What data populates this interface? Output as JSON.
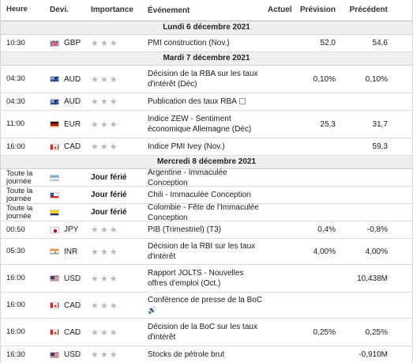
{
  "headers": {
    "time": "Heure",
    "currency": "Devi.",
    "importance": "Importance",
    "event": "Événement",
    "actual": "Actuel",
    "forecast": "Prévision",
    "previous": "Précédent"
  },
  "days": [
    {
      "label": "Lundi 6 décembre 2021",
      "events": [
        {
          "time": "10:30",
          "flag": "gb",
          "cur": "GBP",
          "imp": "★★★",
          "holiday": "",
          "event": [
            "PMI construction (Nov.)"
          ],
          "actual": "",
          "forecast": "52,0",
          "previous": "54,6",
          "icon": ""
        }
      ]
    },
    {
      "label": "Mardi 7 décembre 2021",
      "events": [
        {
          "time": "04:30",
          "flag": "au",
          "cur": "AUD",
          "imp": "★★★",
          "holiday": "",
          "event": [
            "Décision de la RBA sur les taux",
            "d'intérêt (Déc)"
          ],
          "actual": "",
          "forecast": "0,10%",
          "previous": "0,10%",
          "icon": ""
        },
        {
          "time": "04:30",
          "flag": "au",
          "cur": "AUD",
          "imp": "★★★",
          "holiday": "",
          "event": [
            "Publication des taux RBA"
          ],
          "actual": "",
          "forecast": "",
          "previous": "",
          "icon": "doc"
        },
        {
          "time": "11:00",
          "flag": "de",
          "cur": "EUR",
          "imp": "★★★",
          "holiday": "",
          "event": [
            "Indice ZEW - Sentiment",
            "économique Allemagne (Déc)"
          ],
          "actual": "",
          "forecast": "25,3",
          "previous": "31,7",
          "icon": ""
        },
        {
          "time": "16:00",
          "flag": "ca",
          "cur": "CAD",
          "imp": "★★★",
          "holiday": "",
          "event": [
            "Indice PMI Ivey (Nov.)"
          ],
          "actual": "",
          "forecast": "",
          "previous": "59,3",
          "icon": ""
        }
      ]
    },
    {
      "label": "Mercredi 8 décembre 2021",
      "events": [
        {
          "time": "Toute la journée",
          "flag": "ar",
          "cur": "",
          "imp": "",
          "holiday": "Jour férié",
          "event": [
            "Argentine - Immaculée Conception"
          ],
          "actual": "",
          "forecast": "",
          "previous": "",
          "icon": ""
        },
        {
          "time": "Toute la journée",
          "flag": "cl",
          "cur": "",
          "imp": "",
          "holiday": "Jour férié",
          "event": [
            "Chili - Immaculée Conception"
          ],
          "actual": "",
          "forecast": "",
          "previous": "",
          "icon": ""
        },
        {
          "time": "Toute la journée",
          "flag": "co",
          "cur": "",
          "imp": "",
          "holiday": "Jour férié",
          "event": [
            "Colombie - Fête de l'Immaculée Conception"
          ],
          "actual": "",
          "forecast": "",
          "previous": "",
          "icon": ""
        },
        {
          "time": "00:50",
          "flag": "jp",
          "cur": "JPY",
          "imp": "★★★",
          "holiday": "",
          "event": [
            "PIB (Trimestriel) (T3)"
          ],
          "actual": "",
          "forecast": "0,4%",
          "previous": "-0,8%",
          "icon": ""
        },
        {
          "time": "05:30",
          "flag": "in",
          "cur": "INR",
          "imp": "★★★",
          "holiday": "",
          "event": [
            "Décision de la RBI sur les taux",
            "d'intérêt"
          ],
          "actual": "",
          "forecast": "4,00%",
          "previous": "4,00%",
          "icon": ""
        },
        {
          "time": "16:00",
          "flag": "us",
          "cur": "USD",
          "imp": "★★★",
          "holiday": "",
          "event": [
            "Rapport JOLTS - Nouvelles",
            "offres d'emploi (Oct.)"
          ],
          "actual": "",
          "forecast": "",
          "previous": "10,438M",
          "icon": ""
        },
        {
          "time": "16:00",
          "flag": "ca",
          "cur": "CAD",
          "imp": "★★★",
          "holiday": "",
          "event": [
            "Conférence de presse de la BoC",
            ""
          ],
          "actual": "",
          "forecast": "",
          "previous": "",
          "icon": "speaker"
        },
        {
          "time": "16:00",
          "flag": "ca",
          "cur": "CAD",
          "imp": "★★★",
          "holiday": "",
          "event": [
            "Décision de la BoC sur les taux",
            "d'intérêt"
          ],
          "actual": "",
          "forecast": "0,25%",
          "previous": "0,25%",
          "icon": ""
        },
        {
          "time": "16:30",
          "flag": "us",
          "cur": "USD",
          "imp": "★★★",
          "holiday": "",
          "event": [
            "Stocks de pétrole brut"
          ],
          "actual": "",
          "forecast": "",
          "previous": "-0,910M",
          "icon": ""
        }
      ]
    }
  ]
}
